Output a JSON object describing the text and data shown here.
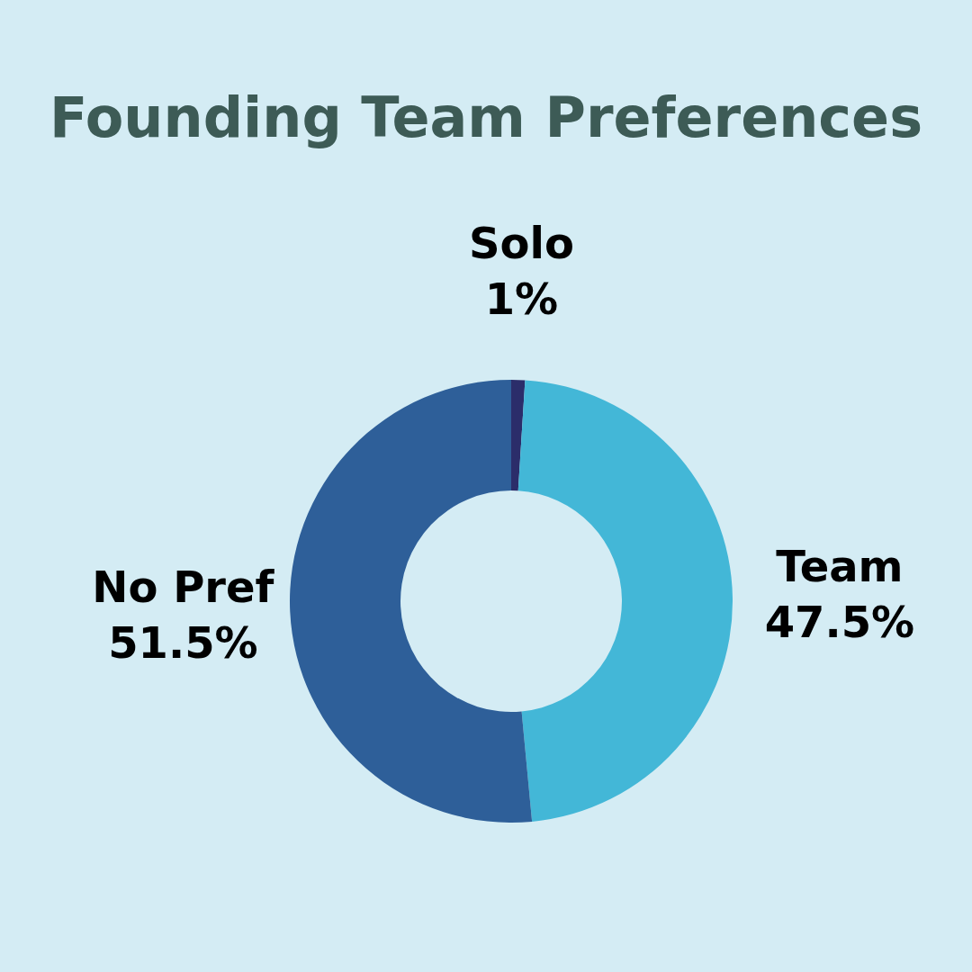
{
  "chart_data": {
    "type": "donut",
    "title": "Founding Team Preferences",
    "categories": [
      "Solo",
      "Team",
      "No Pref"
    ],
    "values": [
      1,
      47.5,
      51.5
    ],
    "value_labels": [
      "1%",
      "47.5%",
      "51.5%"
    ],
    "colors": [
      "#2b2d6a",
      "#43b7d7",
      "#2e5f99"
    ],
    "legend": false
  }
}
